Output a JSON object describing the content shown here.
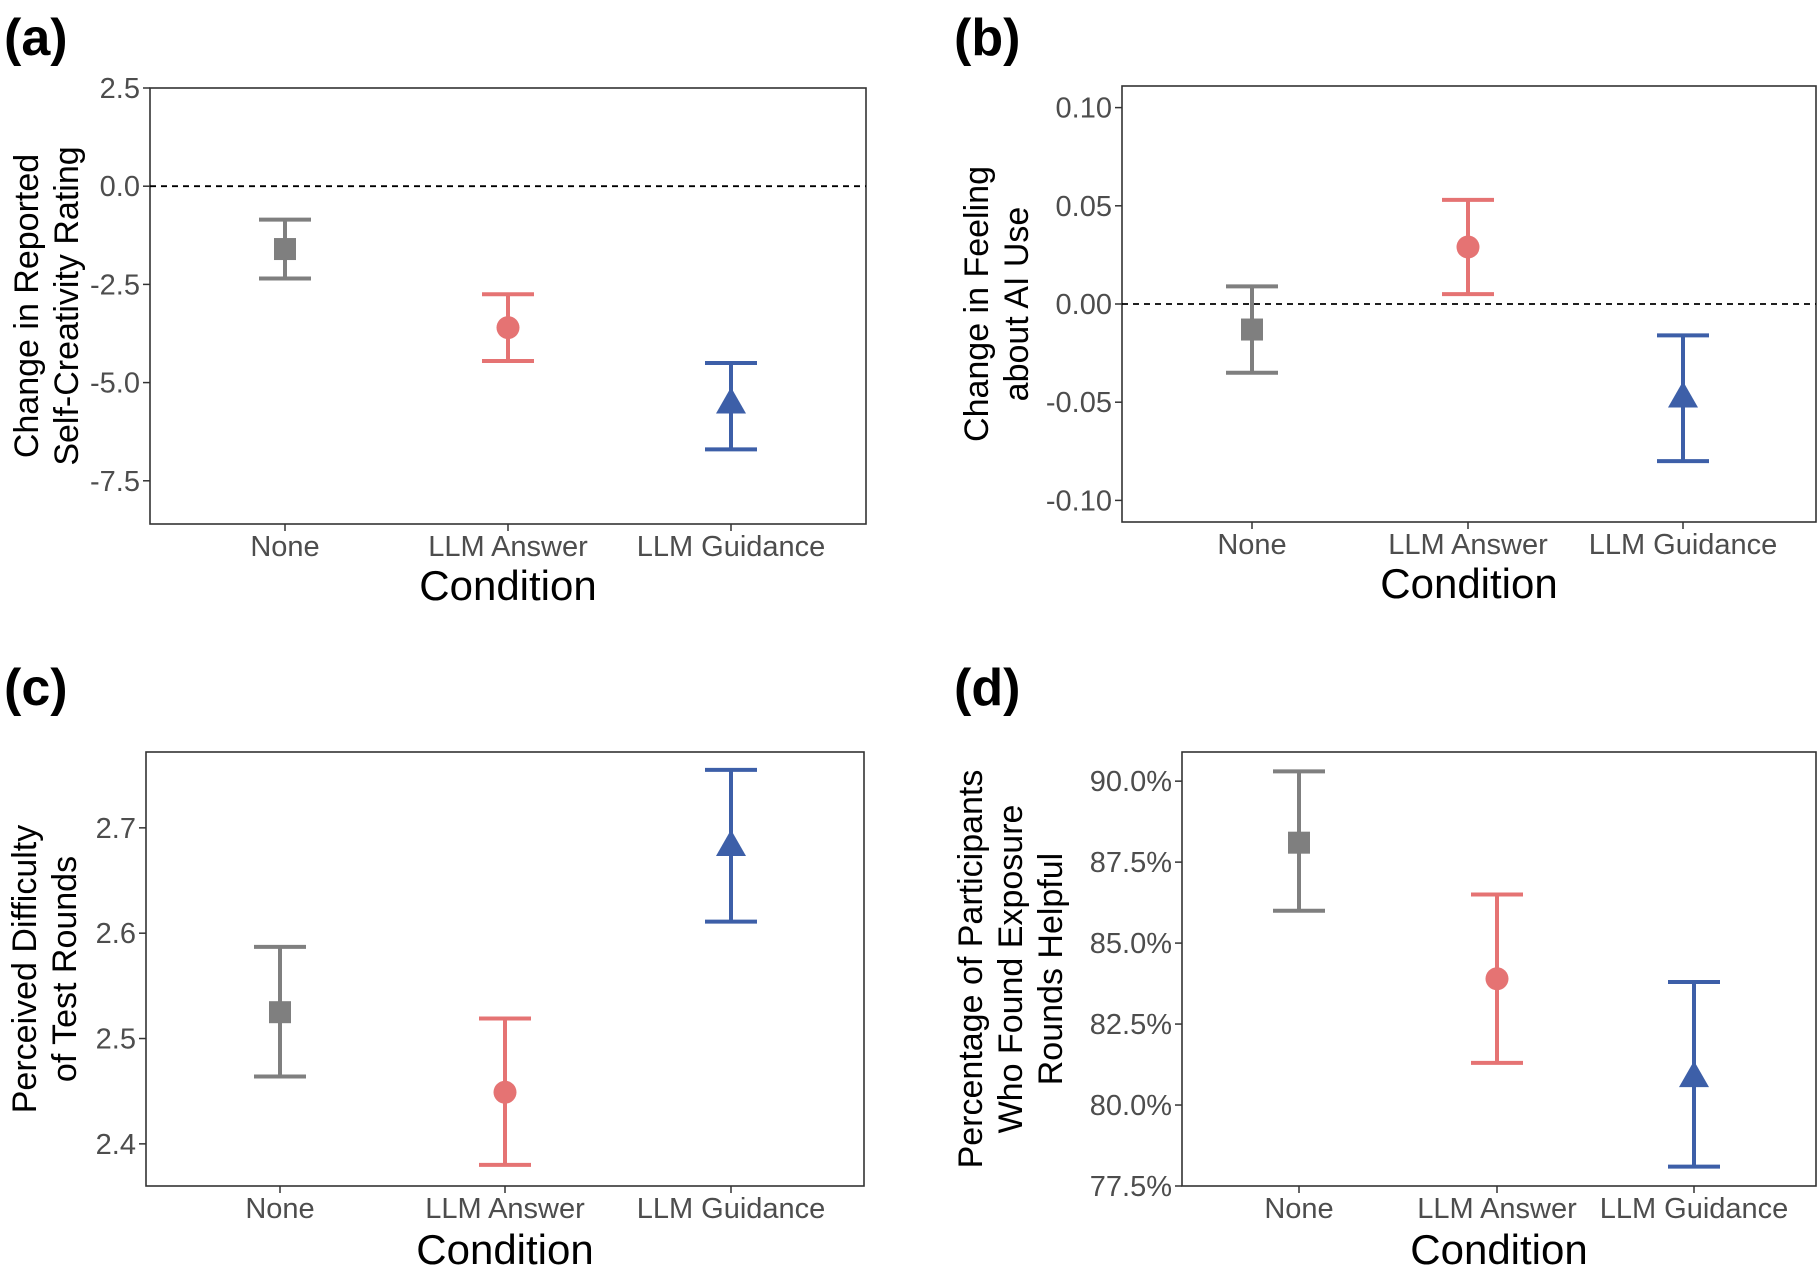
{
  "chart_data": [
    {
      "panel": "(a)",
      "type": "scatter",
      "subtype": "point-with-error-bars",
      "categories": [
        "None",
        "LLM Answer",
        "LLM Guidance"
      ],
      "values": [
        -1.6,
        -3.6,
        -5.5
      ],
      "error_low": [
        -2.35,
        -4.45,
        -6.7
      ],
      "error_high": [
        -0.85,
        -2.75,
        -4.5
      ],
      "colors": [
        "#7f7f7f",
        "#e57373",
        "#3d5fa8"
      ],
      "shapes": [
        "square",
        "circle",
        "triangle"
      ],
      "yticks": [
        "2.5",
        "0.0",
        "-2.5",
        "-5.0",
        "-7.5"
      ],
      "ytick_values": [
        2.5,
        0,
        -2.5,
        -5,
        -7.5
      ],
      "ylim": [
        -8.6,
        2.5
      ],
      "reference_line": 0,
      "ylabel": [
        "Change in Reported",
        "Self-Creativity Rating"
      ],
      "xlabel": "Condition",
      "grid": false
    },
    {
      "panel": "(b)",
      "type": "scatter",
      "subtype": "point-with-error-bars",
      "categories": [
        "None",
        "LLM Answer",
        "LLM Guidance"
      ],
      "values": [
        -0.013,
        0.029,
        -0.047
      ],
      "error_low": [
        -0.035,
        0.005,
        -0.08
      ],
      "error_high": [
        0.009,
        0.053,
        -0.016
      ],
      "colors": [
        "#7f7f7f",
        "#e57373",
        "#3d5fa8"
      ],
      "shapes": [
        "square",
        "circle",
        "triangle"
      ],
      "yticks": [
        "0.10",
        "0.05",
        "0.00",
        "-0.05",
        "-0.10"
      ],
      "ytick_values": [
        0.1,
        0.05,
        0,
        -0.05,
        -0.1
      ],
      "ylim": [
        -0.111,
        0.111
      ],
      "reference_line": 0,
      "ylabel": [
        "Change in Feeling",
        "about AI Use"
      ],
      "xlabel": "Condition",
      "grid": false
    },
    {
      "panel": "(c)",
      "type": "scatter",
      "subtype": "point-with-error-bars",
      "categories": [
        "None",
        "LLM Answer",
        "LLM Guidance"
      ],
      "values": [
        2.525,
        2.449,
        2.684
      ],
      "error_low": [
        2.464,
        2.38,
        2.611
      ],
      "error_high": [
        2.587,
        2.519,
        2.755
      ],
      "colors": [
        "#7f7f7f",
        "#e57373",
        "#3d5fa8"
      ],
      "shapes": [
        "square",
        "circle",
        "triangle"
      ],
      "yticks": [
        "2.7",
        "2.6",
        "2.5",
        "2.4"
      ],
      "ytick_values": [
        2.7,
        2.6,
        2.5,
        2.4
      ],
      "ylim": [
        2.36,
        2.772
      ],
      "reference_line": null,
      "ylabel": [
        "Perceived Difficulty",
        "of Test Rounds"
      ],
      "xlabel": "Condition",
      "grid": false
    },
    {
      "panel": "(d)",
      "type": "scatter",
      "subtype": "point-with-error-bars",
      "categories": [
        "None",
        "LLM Answer",
        "LLM Guidance"
      ],
      "values": [
        88.1,
        83.9,
        80.9
      ],
      "error_low": [
        86.0,
        81.3,
        78.1
      ],
      "error_high": [
        90.3,
        86.5,
        83.8
      ],
      "colors": [
        "#7f7f7f",
        "#e57373",
        "#3d5fa8"
      ],
      "shapes": [
        "square",
        "circle",
        "triangle"
      ],
      "yticks": [
        "90.0%",
        "87.5%",
        "85.0%",
        "82.5%",
        "80.0%",
        "77.5%"
      ],
      "ytick_values": [
        90,
        87.5,
        85,
        82.5,
        80,
        77.5
      ],
      "ylim": [
        77.5,
        90.9
      ],
      "reference_line": null,
      "ylabel": [
        "Percentage of Participants",
        "Who Found Exposure",
        "Rounds Helpful"
      ],
      "xlabel": "Condition",
      "grid": false
    }
  ]
}
